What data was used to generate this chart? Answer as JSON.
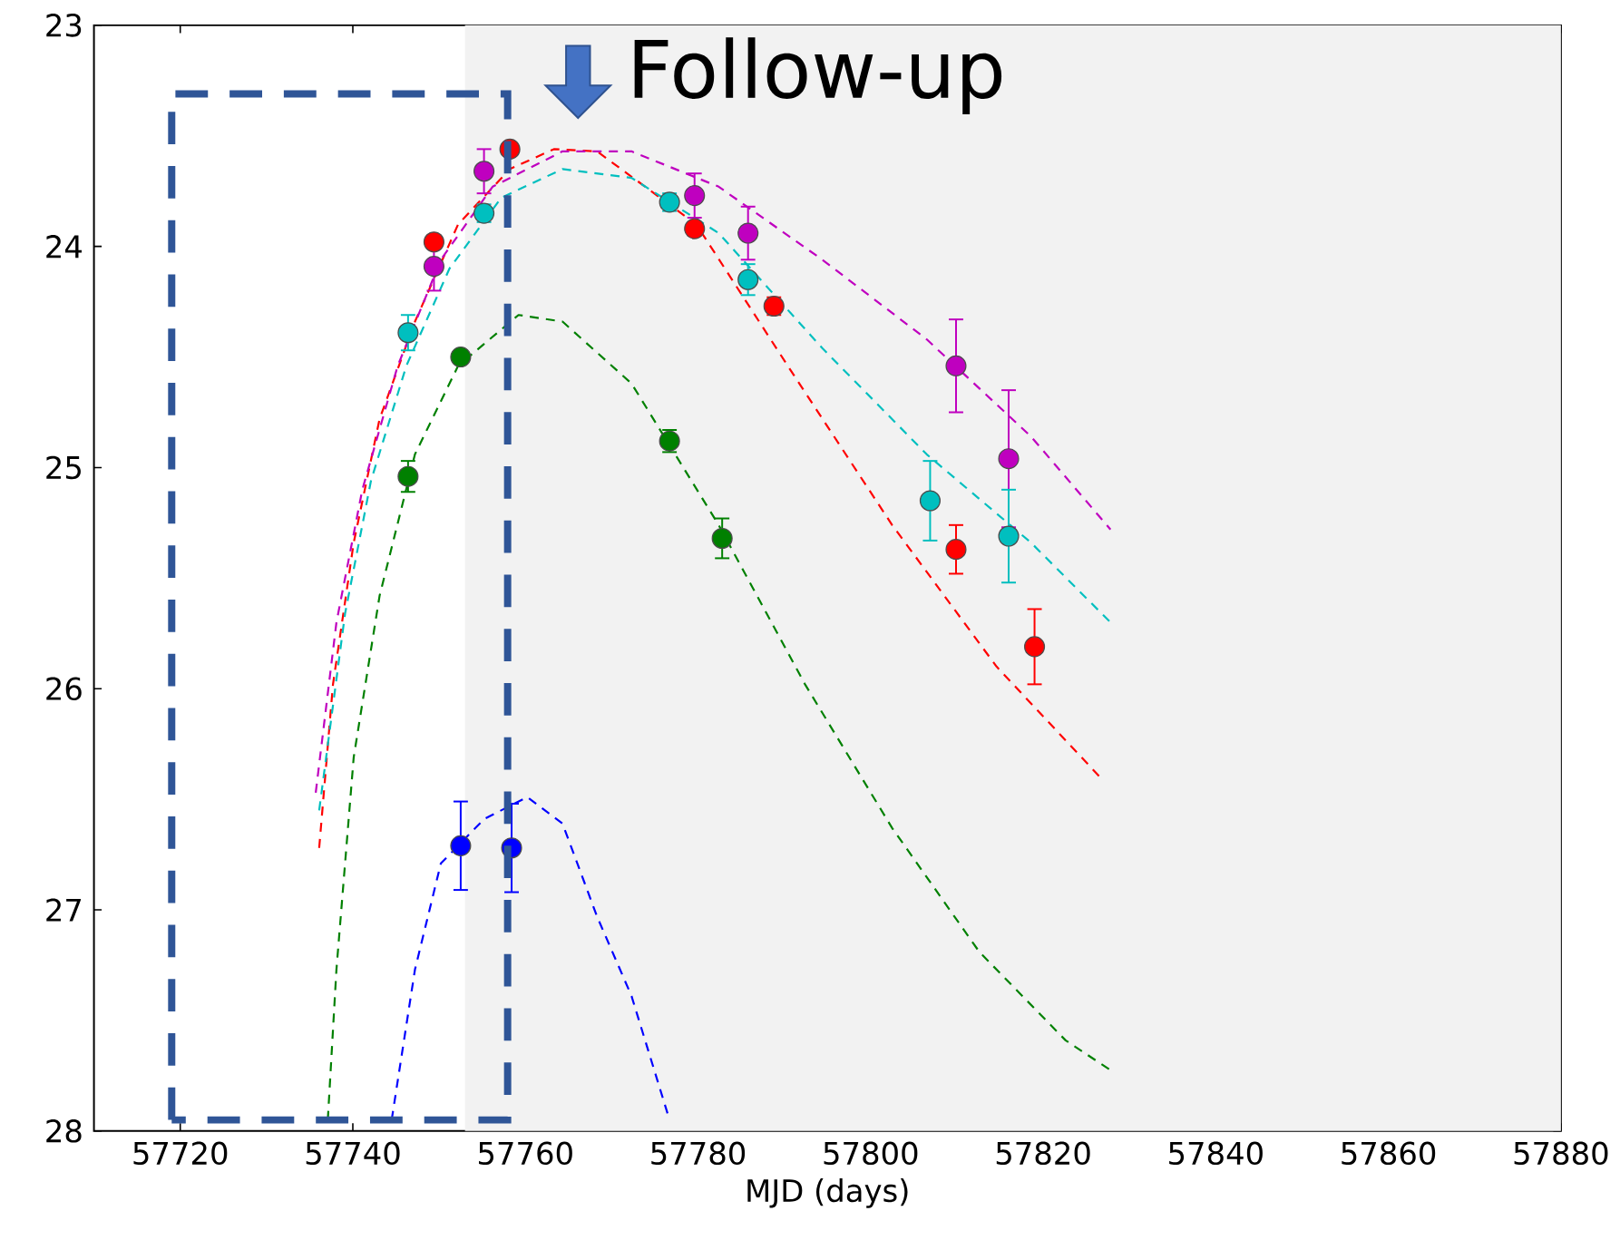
{
  "chart_data": {
    "type": "scatter",
    "xlabel": "MJD (days)",
    "xlim": [
      57710,
      57880
    ],
    "xticks": [
      57720,
      57740,
      57760,
      57780,
      57800,
      57820,
      57840,
      57860,
      57880
    ],
    "ylim": [
      28,
      23
    ],
    "yticks": [
      23,
      24,
      25,
      26,
      27,
      28
    ],
    "annotations": [
      "Follow-up"
    ],
    "bands": [
      {
        "axis": "x",
        "from": 57753,
        "to": 57880,
        "color": "#f2f2f2"
      }
    ],
    "series": [
      {
        "type": "line",
        "marker": "none",
        "line_style": "dashed",
        "color": "#ff0000",
        "x": [
          57736.1,
          57737.7,
          57740.1,
          57743.1,
          57747.2,
          57752.2,
          57758.2,
          57763.3,
          57768.3,
          57779.8,
          57790.4,
          57802.5,
          57814.6,
          57826.6
        ],
        "values": [
          26.72,
          25.98,
          25.34,
          24.78,
          24.34,
          23.9,
          23.65,
          23.56,
          23.57,
          23.9,
          24.54,
          25.26,
          25.9,
          26.4
        ]
      },
      {
        "type": "line",
        "marker": "none",
        "line_style": "dashed",
        "color": "#bf00bf",
        "x": [
          57735.7,
          57738.1,
          57741.1,
          57745.2,
          57750.2,
          57756.2,
          57764.3,
          57772.3,
          57782.4,
          57794.4,
          57806.5,
          57818.6,
          57827.8
        ],
        "values": [
          26.47,
          25.7,
          25.1,
          24.54,
          24.06,
          23.73,
          23.57,
          23.57,
          23.73,
          24.06,
          24.42,
          24.86,
          25.28
        ]
      },
      {
        "type": "line",
        "marker": "none",
        "line_style": "dashed",
        "color": "#00bfbf",
        "x": [
          57736.1,
          57739.1,
          57742.1,
          57746.2,
          57751.2,
          57757.2,
          57764.3,
          57772.3,
          57782.4,
          57794.4,
          57806.5,
          57818.6,
          57827.8
        ],
        "values": [
          26.55,
          25.66,
          25.06,
          24.54,
          24.1,
          23.78,
          23.65,
          23.69,
          23.94,
          24.46,
          24.94,
          25.34,
          25.7
        ]
      },
      {
        "type": "line",
        "marker": "none",
        "line_style": "dashed",
        "color": "#008000",
        "x": [
          57737.1,
          57738.1,
          57740.1,
          57743.1,
          57747.2,
          57752.2,
          57759.2,
          57764.3,
          57772.3,
          57782.4,
          57792.4,
          57802.5,
          57812.6,
          57822.6,
          57828.0
        ],
        "values": [
          27.95,
          27.27,
          26.31,
          25.58,
          24.94,
          24.54,
          24.31,
          24.34,
          24.62,
          25.26,
          25.98,
          26.63,
          27.19,
          27.59,
          27.73
        ]
      },
      {
        "type": "line",
        "marker": "none",
        "line_style": "dashed",
        "color": "#0000ff",
        "x": [
          57744.5,
          57747.2,
          57750.2,
          57755.2,
          57760.2,
          57764.3,
          57768.3,
          57772.3,
          57776.7
        ],
        "values": [
          27.95,
          27.27,
          26.79,
          26.59,
          26.49,
          26.61,
          27.03,
          27.39,
          27.95
        ]
      },
      {
        "color": "#ff0000",
        "x": [
          57749.4,
          57758.2,
          57779.6,
          57788.8,
          57809.9,
          57819.0
        ],
        "values": [
          23.98,
          23.56,
          23.92,
          24.27,
          25.37,
          25.81
        ],
        "errors": [
          0.03,
          0.03,
          0.03,
          0.04,
          0.11,
          0.17
        ]
      },
      {
        "color": "#bf00bf",
        "x": [
          57749.4,
          57755.2,
          57779.6,
          57785.8,
          57809.9,
          57816.0
        ],
        "values": [
          24.09,
          23.66,
          23.77,
          23.94,
          24.54,
          24.96
        ],
        "errors": [
          0.11,
          0.1,
          0.1,
          0.12,
          0.21,
          0.31
        ]
      },
      {
        "color": "#00bfbf",
        "x": [
          57746.4,
          57755.2,
          57776.7,
          57785.8,
          57806.9,
          57816.0
        ],
        "values": [
          24.39,
          23.85,
          23.8,
          24.15,
          25.15,
          25.31
        ],
        "errors": [
          0.08,
          0.04,
          0.04,
          0.07,
          0.18,
          0.21
        ]
      },
      {
        "color": "#008000",
        "x": [
          57746.4,
          57752.5,
          57776.7,
          57782.8
        ],
        "values": [
          25.04,
          24.5,
          24.88,
          25.32
        ],
        "errors": [
          0.07,
          0.03,
          0.05,
          0.09
        ]
      },
      {
        "color": "#0000ff",
        "x": [
          57752.5,
          57758.4
        ],
        "values": [
          26.71,
          26.72
        ],
        "errors": [
          0.2,
          0.2
        ]
      }
    ]
  }
}
